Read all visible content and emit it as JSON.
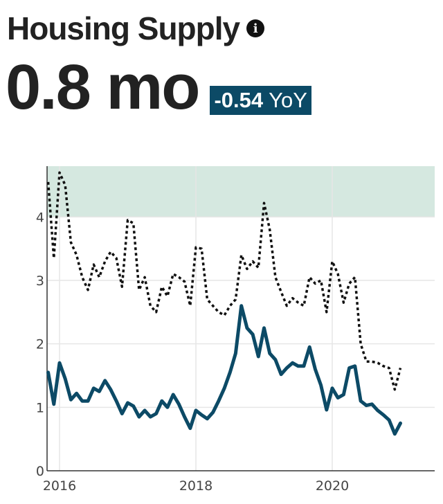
{
  "header": {
    "title": "Housing Supply",
    "info_icon": "info-icon",
    "metric_value": "0.8 mo",
    "yoy_value": "-0.54",
    "yoy_label": "YoY",
    "badge_color": "#0c4a66"
  },
  "chart_data": {
    "type": "line",
    "title": "",
    "xlabel": "",
    "ylabel": "",
    "xlim": [
      2015.9,
      2021.5
    ],
    "ylim": [
      0,
      4.8
    ],
    "x_ticks": [
      2016,
      2018,
      2020
    ],
    "x_tick_labels": [
      "2016",
      "2018",
      "2020"
    ],
    "y_ticks": [
      0,
      1,
      2,
      3,
      4
    ],
    "y_tick_labels": [
      "0",
      "1",
      "2",
      "3",
      "4"
    ],
    "grid": true,
    "shaded_band": {
      "y_from": 4,
      "y_to": 4.8,
      "color": "#d5e8e0"
    },
    "x": [
      2015.833,
      2015.917,
      2016.0,
      2016.083,
      2016.167,
      2016.25,
      2016.333,
      2016.417,
      2016.5,
      2016.583,
      2016.667,
      2016.75,
      2016.833,
      2016.917,
      2017.0,
      2017.083,
      2017.167,
      2017.25,
      2017.333,
      2017.417,
      2017.5,
      2017.583,
      2017.667,
      2017.75,
      2017.833,
      2017.917,
      2018.0,
      2018.083,
      2018.167,
      2018.25,
      2018.333,
      2018.417,
      2018.5,
      2018.583,
      2018.667,
      2018.75,
      2018.833,
      2018.917,
      2019.0,
      2019.083,
      2019.167,
      2019.25,
      2019.333,
      2019.417,
      2019.5,
      2019.583,
      2019.667,
      2019.75,
      2019.833,
      2019.917,
      2020.0,
      2020.083,
      2020.167,
      2020.25,
      2020.333,
      2020.417,
      2020.5,
      2020.583,
      2020.667,
      2020.75,
      2020.833,
      2020.917,
      2021.0
    ],
    "series": [
      {
        "style": "solid",
        "color": "#0c4a66",
        "values": [
          1.55,
          1.05,
          1.7,
          1.45,
          1.12,
          1.22,
          1.1,
          1.1,
          1.3,
          1.25,
          1.42,
          1.28,
          1.1,
          0.9,
          1.07,
          1.02,
          0.85,
          0.95,
          0.85,
          0.9,
          1.1,
          1.0,
          1.2,
          1.05,
          0.85,
          0.67,
          0.95,
          0.88,
          0.82,
          0.92,
          1.1,
          1.3,
          1.55,
          1.85,
          2.6,
          2.25,
          2.15,
          1.8,
          2.25,
          1.85,
          1.75,
          1.52,
          1.62,
          1.7,
          1.65,
          1.65,
          1.95,
          1.6,
          1.35,
          0.96,
          1.3,
          1.15,
          1.2,
          1.62,
          1.65,
          1.1,
          1.03,
          1.05,
          0.95,
          0.88,
          0.8,
          0.58,
          0.75
        ]
      },
      {
        "style": "dotted",
        "color": "#111111",
        "values": [
          4.55,
          3.35,
          4.7,
          4.5,
          3.6,
          3.4,
          3.05,
          2.85,
          3.25,
          3.05,
          3.3,
          3.45,
          3.35,
          2.9,
          3.95,
          3.9,
          2.85,
          3.05,
          2.6,
          2.5,
          2.9,
          2.75,
          3.1,
          3.05,
          2.98,
          2.6,
          3.52,
          3.5,
          2.7,
          2.6,
          2.5,
          2.45,
          2.6,
          2.7,
          3.4,
          3.18,
          3.3,
          3.2,
          4.22,
          3.8,
          3.05,
          2.82,
          2.6,
          2.72,
          2.65,
          2.6,
          3.05,
          2.95,
          3.0,
          2.5,
          3.3,
          3.1,
          2.65,
          2.95,
          3.05,
          2.0,
          1.72,
          1.72,
          1.7,
          1.65,
          1.62,
          1.28,
          1.62
        ]
      }
    ]
  }
}
